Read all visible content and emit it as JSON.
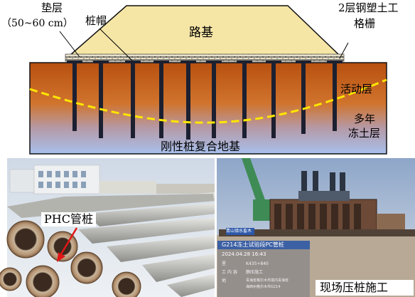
{
  "diagram": {
    "embankment_label": "路基",
    "cushion_label": "垫层",
    "cushion_thickness": "（50~60 cm）",
    "pile_cap_label": "桩帽",
    "geogrid_label_line1": "2层钢塑土工",
    "geogrid_label_line2": "格栅",
    "active_layer_label": "活动层",
    "permafrost_label_line1": "多年",
    "permafrost_label_line2": "冻土层",
    "foundation_label": "刚性桩复合地基"
  },
  "photos": {
    "phc_label": "PHC管桩",
    "site_label": "现场压桩施工",
    "watermark": {
      "location": "青山镇水畜木",
      "title": "G214冻土试验段PC管桩",
      "datetime": "2024.04.28  16:43",
      "row1_key": "里",
      "row1_val": "K435+840",
      "row2_key": "工 内 容",
      "row2_val": "静压施工",
      "row3_key": "地",
      "row3_val": "青海省格尔木市境内青海省",
      "row4_val": "海西州格尔木市G214"
    }
  },
  "colors": {
    "embankment": "#f6e6a6",
    "soil_top": "#c65a13",
    "soil_bottom": "#a9c1e8",
    "pile": "#1c2030",
    "active_layer_line": "#ffe600"
  }
}
